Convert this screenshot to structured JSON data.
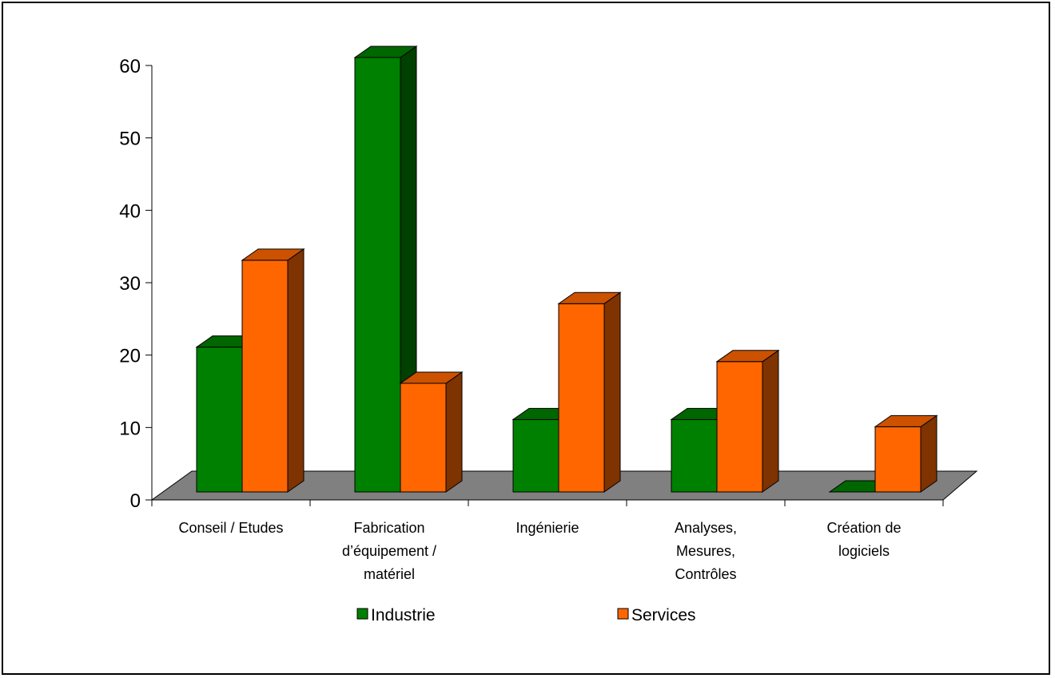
{
  "chart_data": {
    "type": "bar",
    "categories": [
      [
        "Conseil / Etudes"
      ],
      [
        "Fabrication",
        "d’équipement /",
        "matériel"
      ],
      [
        "Ingénierie"
      ],
      [
        "Analyses,",
        "Mesures,",
        "Contrôles"
      ],
      [
        "Création de",
        "logiciels"
      ]
    ],
    "series": [
      {
        "name": "Industrie",
        "values": [
          20,
          60,
          10,
          10,
          0
        ]
      },
      {
        "name": "Services",
        "values": [
          32,
          15,
          26,
          18,
          9
        ]
      }
    ],
    "ylim": [
      0,
      60
    ],
    "yticks": [
      "0",
      "10",
      "20",
      "30",
      "40",
      "50",
      "60"
    ],
    "grid": false,
    "legend_position": "bottom",
    "colors": {
      "Industrie": {
        "front": "#008000",
        "side": "#004000",
        "top": "#006600"
      },
      "Services": {
        "front": "#FF6600",
        "side": "#7F3300",
        "top": "#CC5200"
      },
      "floor": "#808080"
    }
  }
}
